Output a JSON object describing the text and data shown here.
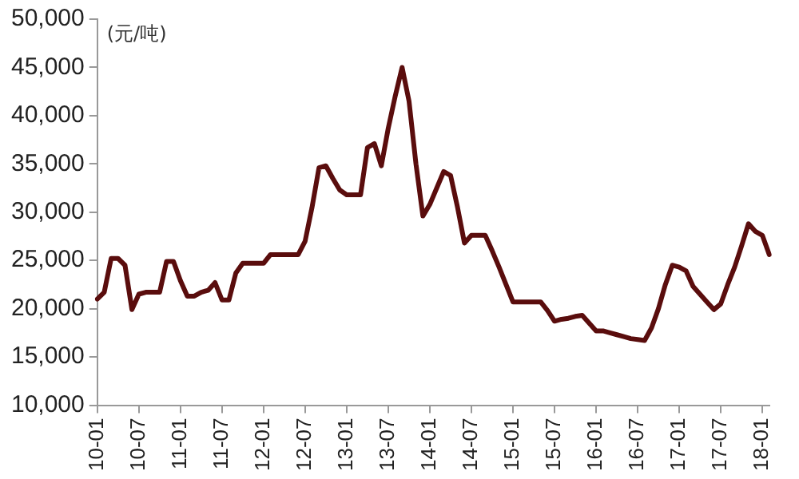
{
  "chart_data": {
    "type": "line",
    "annotations": [
      "(元/吨)"
    ],
    "categories": [
      "10-01",
      null,
      null,
      null,
      null,
      null,
      "10-07",
      null,
      null,
      null,
      null,
      null,
      "11-01",
      null,
      null,
      null,
      null,
      null,
      "11-07",
      null,
      null,
      null,
      null,
      null,
      "12-01",
      null,
      null,
      null,
      null,
      null,
      "12-07",
      null,
      null,
      null,
      null,
      null,
      "13-01",
      null,
      null,
      null,
      null,
      null,
      "13-07",
      null,
      null,
      null,
      null,
      null,
      "14-01",
      null,
      null,
      null,
      null,
      null,
      "14-07",
      null,
      null,
      null,
      null,
      null,
      "15-01",
      null,
      null,
      null,
      null,
      null,
      "15-07",
      null,
      null,
      null,
      null,
      null,
      "16-01",
      null,
      null,
      null,
      null,
      null,
      "16-07",
      null,
      null,
      null,
      null,
      null,
      "17-01",
      null,
      null,
      null,
      null,
      null,
      "17-07",
      null,
      null,
      null,
      null,
      null,
      "18-01",
      null
    ],
    "series": [
      {
        "color": "#5a0d0d",
        "values": [
          21000,
          21700,
          25200,
          25200,
          24500,
          19900,
          21500,
          21700,
          21700,
          21700,
          24900,
          24900,
          22900,
          21300,
          21300,
          21700,
          21900,
          22700,
          20900,
          20900,
          23700,
          24700,
          24700,
          24700,
          24700,
          25600,
          25600,
          25600,
          25600,
          25600,
          27000,
          30500,
          34600,
          34800,
          33500,
          32300,
          31800,
          31800,
          31800,
          36700,
          37100,
          34800,
          38700,
          42000,
          45000,
          41500,
          35000,
          29600,
          30800,
          32500,
          34200,
          33800,
          30500,
          26800,
          27600,
          27600,
          27600,
          26000,
          24300,
          22500,
          20700,
          20700,
          20700,
          20700,
          20700,
          19800,
          18700,
          18900,
          19000,
          19200,
          19300,
          18500,
          17700,
          17700,
          17500,
          17300,
          17100,
          16900,
          16800,
          16700,
          18000,
          20000,
          22500,
          24500,
          24300,
          23900,
          22300,
          21500,
          20700,
          19900,
          20500,
          22500,
          24300,
          26500,
          28800,
          28000,
          27600,
          25600
        ]
      }
    ],
    "ylim": [
      10000,
      50000
    ],
    "yticks": [
      {
        "value": 10000,
        "label": "10,000"
      },
      {
        "value": 15000,
        "label": "15,000"
      },
      {
        "value": 20000,
        "label": "20,000"
      },
      {
        "value": 25000,
        "label": "25,000"
      },
      {
        "value": 30000,
        "label": "30,000"
      },
      {
        "value": 35000,
        "label": "35,000"
      },
      {
        "value": 40000,
        "label": "40,000"
      },
      {
        "value": 45000,
        "label": "45,000"
      },
      {
        "value": 50000,
        "label": "50,000"
      }
    ],
    "grid": false,
    "legend": false,
    "marker": "none",
    "line_style": "solid"
  }
}
